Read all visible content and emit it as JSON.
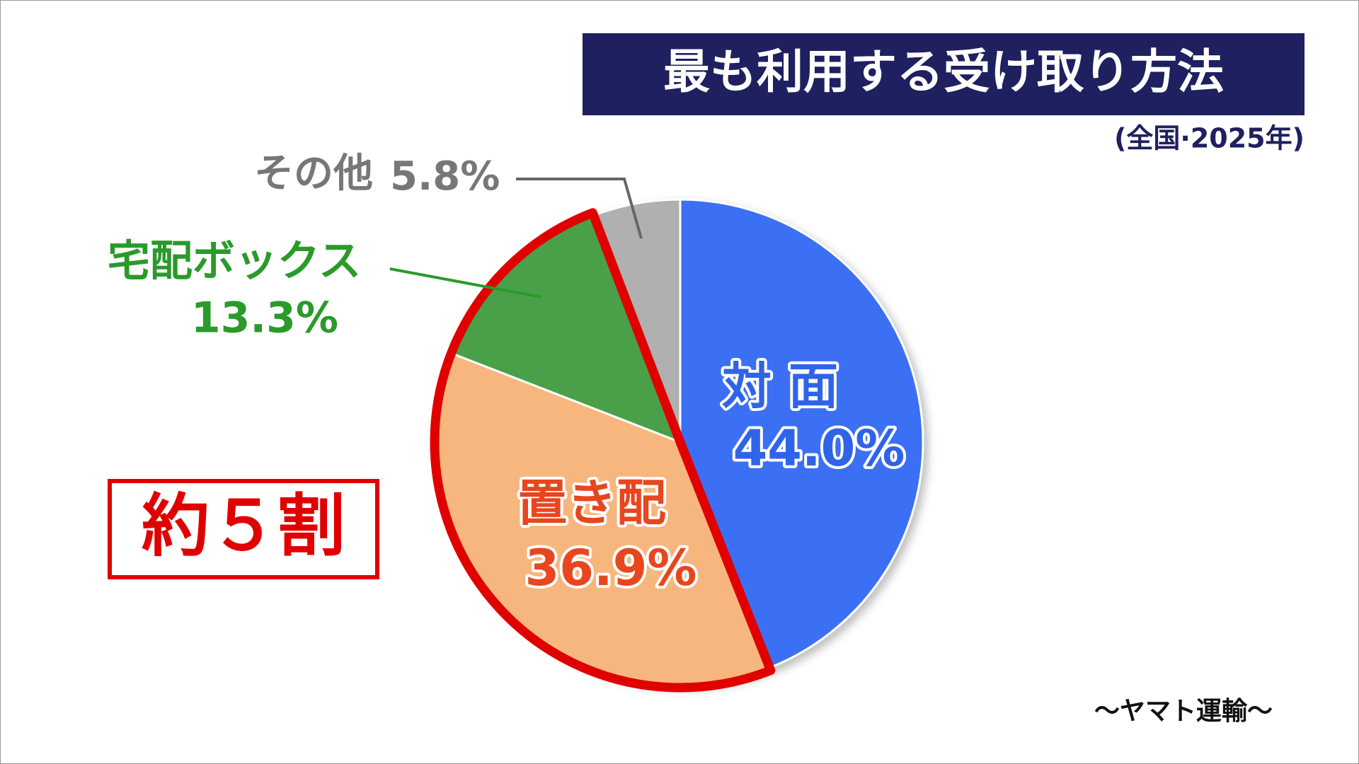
{
  "chart_data": {
    "type": "pie",
    "title": "最も利用する受け取り方法",
    "subtitle": "(全国·2025年)",
    "annotation": "約５割",
    "source": "〜ヤマト運輸〜",
    "categories": [
      "対 面",
      "置き配",
      "宅配ボックス",
      "その他"
    ],
    "values": [
      44.0,
      36.9,
      13.3,
      5.8
    ],
    "value_labels": [
      "44.0%",
      "36.9%",
      "13.3%",
      "5.8%"
    ],
    "colors": [
      "#3b6ff5",
      "#f7b67e",
      "#48a048",
      "#b0b0b0"
    ]
  }
}
